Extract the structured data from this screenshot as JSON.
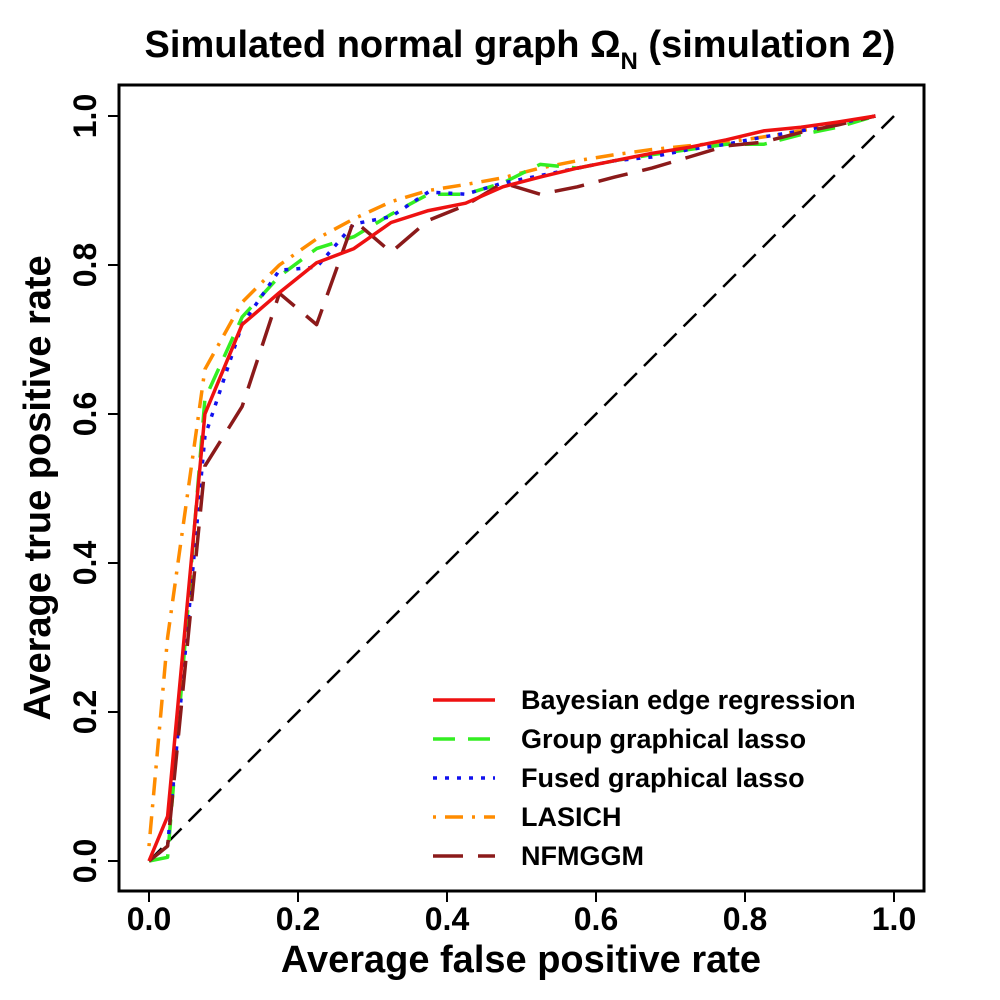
{
  "chart_data": {
    "type": "line",
    "title": "Simulated normal graph Ω",
    "title_subscript": "N",
    "title_suffix": " (simulation 2)",
    "xlabel": "Average false positive rate",
    "ylabel": "Average true positive rate",
    "xlim": [
      0,
      1
    ],
    "ylim": [
      0,
      1
    ],
    "xticks": [
      "0.0",
      "0.2",
      "0.4",
      "0.6",
      "0.8",
      "1.0"
    ],
    "yticks": [
      "0.0",
      "0.2",
      "0.4",
      "0.6",
      "0.8",
      "1.0"
    ],
    "reference_line": {
      "x": [
        0,
        1
      ],
      "y": [
        0,
        1
      ],
      "color": "#000000",
      "style": "dashed"
    },
    "legend_position": "bottom-right",
    "series": [
      {
        "name": "Bayesian edge regression",
        "color": "#ee1111",
        "style": "solid",
        "x": [
          0,
          0.025,
          0.075,
          0.125,
          0.175,
          0.225,
          0.275,
          0.325,
          0.375,
          0.425,
          0.475,
          0.525,
          0.575,
          0.625,
          0.675,
          0.725,
          0.775,
          0.825,
          0.875,
          0.925,
          0.975
        ],
        "y": [
          0,
          0.06,
          0.6,
          0.72,
          0.763,
          0.803,
          0.822,
          0.857,
          0.873,
          0.883,
          0.905,
          0.918,
          0.93,
          0.94,
          0.95,
          0.958,
          0.968,
          0.98,
          0.985,
          0.992,
          1.0
        ]
      },
      {
        "name": "Group graphical lasso",
        "color": "#33ee22",
        "style": "dashed",
        "x": [
          0,
          0.025,
          0.075,
          0.125,
          0.175,
          0.225,
          0.275,
          0.325,
          0.375,
          0.425,
          0.475,
          0.525,
          0.575,
          0.625,
          0.675,
          0.725,
          0.775,
          0.825,
          0.875,
          0.925,
          0.975
        ],
        "y": [
          0,
          0.005,
          0.62,
          0.73,
          0.785,
          0.822,
          0.838,
          0.868,
          0.895,
          0.895,
          0.91,
          0.935,
          0.93,
          0.94,
          0.948,
          0.955,
          0.962,
          0.962,
          0.975,
          0.985,
          1.0
        ]
      },
      {
        "name": "Fused graphical lasso",
        "color": "#1111ee",
        "style": "dotted",
        "x": [
          0,
          0.025,
          0.075,
          0.125,
          0.175,
          0.225,
          0.275,
          0.325,
          0.375,
          0.425,
          0.475,
          0.525,
          0.575,
          0.625,
          0.675,
          0.725,
          0.775,
          0.825,
          0.875,
          0.925,
          0.975
        ],
        "y": [
          0,
          0.02,
          0.57,
          0.72,
          0.793,
          0.797,
          0.855,
          0.865,
          0.898,
          0.895,
          0.91,
          0.92,
          0.93,
          0.94,
          0.945,
          0.955,
          0.962,
          0.972,
          0.98,
          0.99,
          1.0
        ]
      },
      {
        "name": "LASICH",
        "color": "#ff8c00",
        "style": "dotdash",
        "x": [
          0,
          0.025,
          0.075,
          0.125,
          0.175,
          0.225,
          0.275,
          0.325,
          0.375,
          0.425,
          0.475,
          0.525,
          0.575,
          0.625,
          0.675,
          0.725,
          0.775,
          0.825,
          0.875,
          0.925,
          0.975
        ],
        "y": [
          0.02,
          0.3,
          0.66,
          0.75,
          0.8,
          0.835,
          0.862,
          0.885,
          0.9,
          0.908,
          0.917,
          0.93,
          0.94,
          0.948,
          0.955,
          0.96,
          0.965,
          0.972,
          0.98,
          0.99,
          1.0
        ]
      },
      {
        "name": "NFMGGM",
        "color": "#8b1a1a",
        "style": "longdash",
        "x": [
          0,
          0.025,
          0.075,
          0.125,
          0.175,
          0.225,
          0.275,
          0.325,
          0.375,
          0.425,
          0.475,
          0.525,
          0.575,
          0.625,
          0.675,
          0.725,
          0.775,
          0.825,
          0.875,
          0.925,
          0.975
        ],
        "y": [
          0,
          0.02,
          0.53,
          0.61,
          0.762,
          0.72,
          0.86,
          0.817,
          0.86,
          0.88,
          0.91,
          0.895,
          0.905,
          0.918,
          0.93,
          0.945,
          0.96,
          0.965,
          0.978,
          0.988,
          1.0
        ]
      }
    ]
  }
}
